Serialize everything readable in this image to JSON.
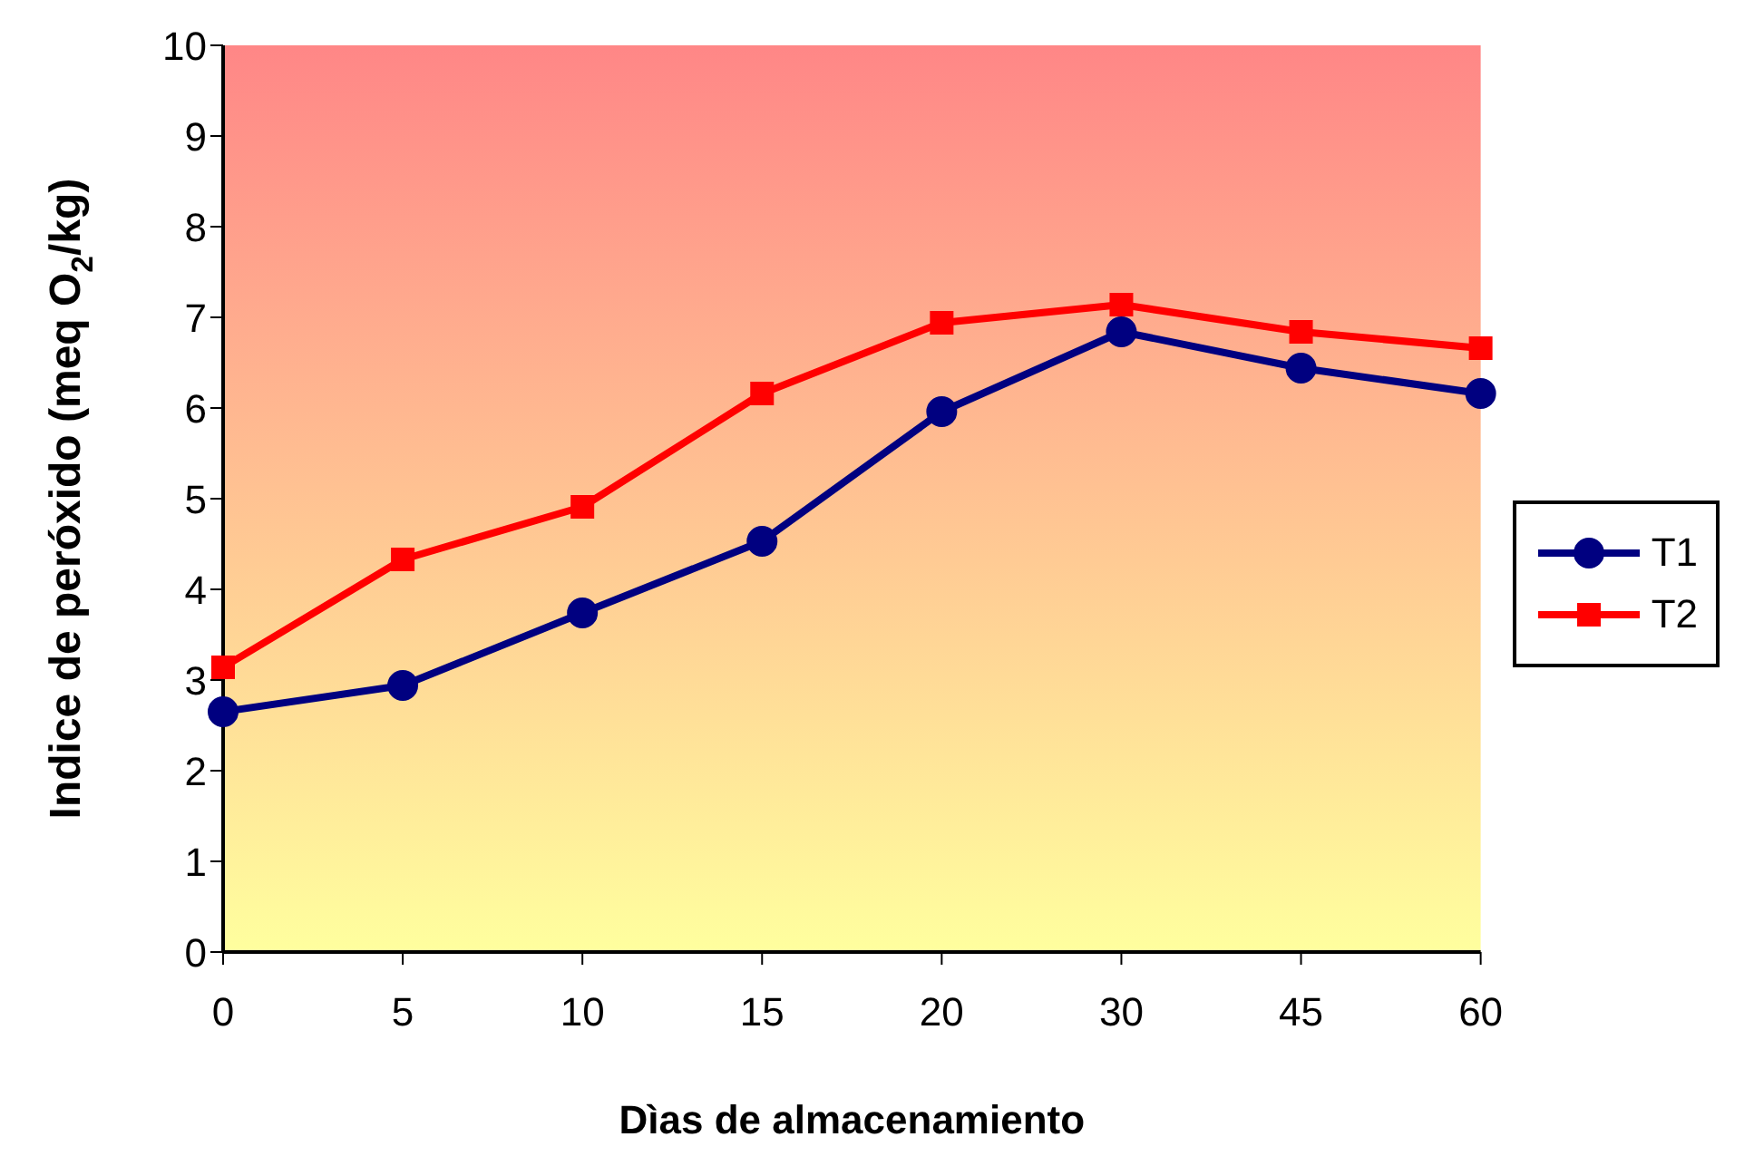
{
  "chart_data": {
    "type": "line",
    "xlabel": "Dìas de almacenamiento",
    "ylabel": "Indice de peróxido (meq O$_{2}$/kg)",
    "categories": [
      "0",
      "5",
      "10",
      "15",
      "20",
      "30",
      "45",
      "60"
    ],
    "series": [
      {
        "name": "T1",
        "color": "#000080",
        "marker": "circle",
        "values": [
          2.65,
          2.94,
          3.74,
          4.53,
          5.96,
          6.84,
          6.44,
          6.16
        ]
      },
      {
        "name": "T2",
        "color": "#ff0000",
        "marker": "square",
        "values": [
          3.14,
          4.33,
          4.91,
          6.16,
          6.94,
          7.14,
          6.84,
          6.66
        ]
      }
    ],
    "ylim": [
      0,
      10
    ],
    "yticks": [
      0,
      1,
      2,
      3,
      4,
      5,
      6,
      7,
      8,
      9,
      10
    ],
    "grid": false,
    "legend": "right"
  }
}
